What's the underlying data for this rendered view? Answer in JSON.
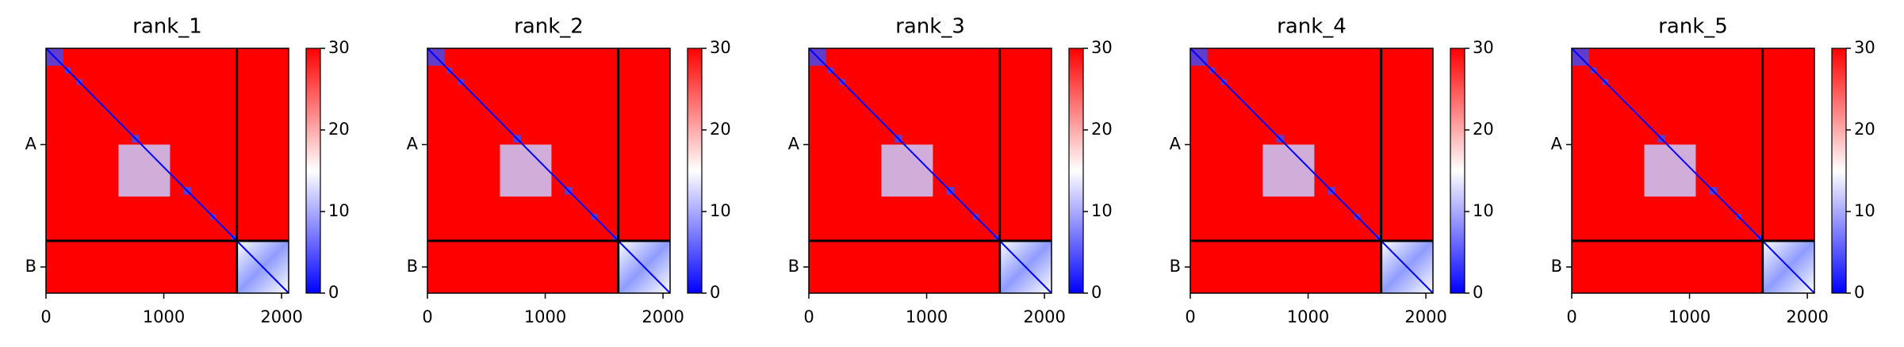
{
  "chart_data": [
    {
      "type": "heatmap",
      "title": "rank_1",
      "xlim": [
        0,
        2060
      ],
      "ylim": [
        2060,
        0
      ],
      "xticks": [
        0,
        1000,
        2000
      ],
      "yticks": [
        {
          "value": 810,
          "label": "A"
        },
        {
          "value": 1840,
          "label": "B"
        }
      ],
      "clim": [
        0,
        30
      ],
      "cticks": [
        0,
        10,
        20,
        30
      ],
      "colormap": [
        "#0000ff",
        "#ffffff",
        "#ff0000"
      ],
      "chain_breaks": [
        1620
      ]
    },
    {
      "type": "heatmap",
      "title": "rank_2",
      "xlim": [
        0,
        2060
      ],
      "ylim": [
        2060,
        0
      ],
      "xticks": [
        0,
        1000,
        2000
      ],
      "yticks": [
        {
          "value": 810,
          "label": "A"
        },
        {
          "value": 1840,
          "label": "B"
        }
      ],
      "clim": [
        0,
        30
      ],
      "cticks": [
        0,
        10,
        20,
        30
      ],
      "colormap": [
        "#0000ff",
        "#ffffff",
        "#ff0000"
      ],
      "chain_breaks": [
        1620
      ]
    },
    {
      "type": "heatmap",
      "title": "rank_3",
      "xlim": [
        0,
        2060
      ],
      "ylim": [
        2060,
        0
      ],
      "xticks": [
        0,
        1000,
        2000
      ],
      "yticks": [
        {
          "value": 810,
          "label": "A"
        },
        {
          "value": 1840,
          "label": "B"
        }
      ],
      "clim": [
        0,
        30
      ],
      "cticks": [
        0,
        10,
        20,
        30
      ],
      "colormap": [
        "#0000ff",
        "#ffffff",
        "#ff0000"
      ],
      "chain_breaks": [
        1620
      ]
    },
    {
      "type": "heatmap",
      "title": "rank_4",
      "xlim": [
        0,
        2060
      ],
      "ylim": [
        2060,
        0
      ],
      "xticks": [
        0,
        1000,
        2000
      ],
      "yticks": [
        {
          "value": 810,
          "label": "A"
        },
        {
          "value": 1840,
          "label": "B"
        }
      ],
      "clim": [
        0,
        30
      ],
      "cticks": [
        0,
        10,
        20,
        30
      ],
      "colormap": [
        "#0000ff",
        "#ffffff",
        "#ff0000"
      ],
      "chain_breaks": [
        1620
      ]
    },
    {
      "type": "heatmap",
      "title": "rank_5",
      "xlim": [
        0,
        2060
      ],
      "ylim": [
        2060,
        0
      ],
      "xticks": [
        0,
        1000,
        2000
      ],
      "yticks": [
        {
          "value": 810,
          "label": "A"
        },
        {
          "value": 1840,
          "label": "B"
        }
      ],
      "clim": [
        0,
        30
      ],
      "cticks": [
        0,
        10,
        20,
        30
      ],
      "colormap": [
        "#0000ff",
        "#ffffff",
        "#ff0000"
      ],
      "chain_breaks": [
        1620
      ]
    }
  ]
}
